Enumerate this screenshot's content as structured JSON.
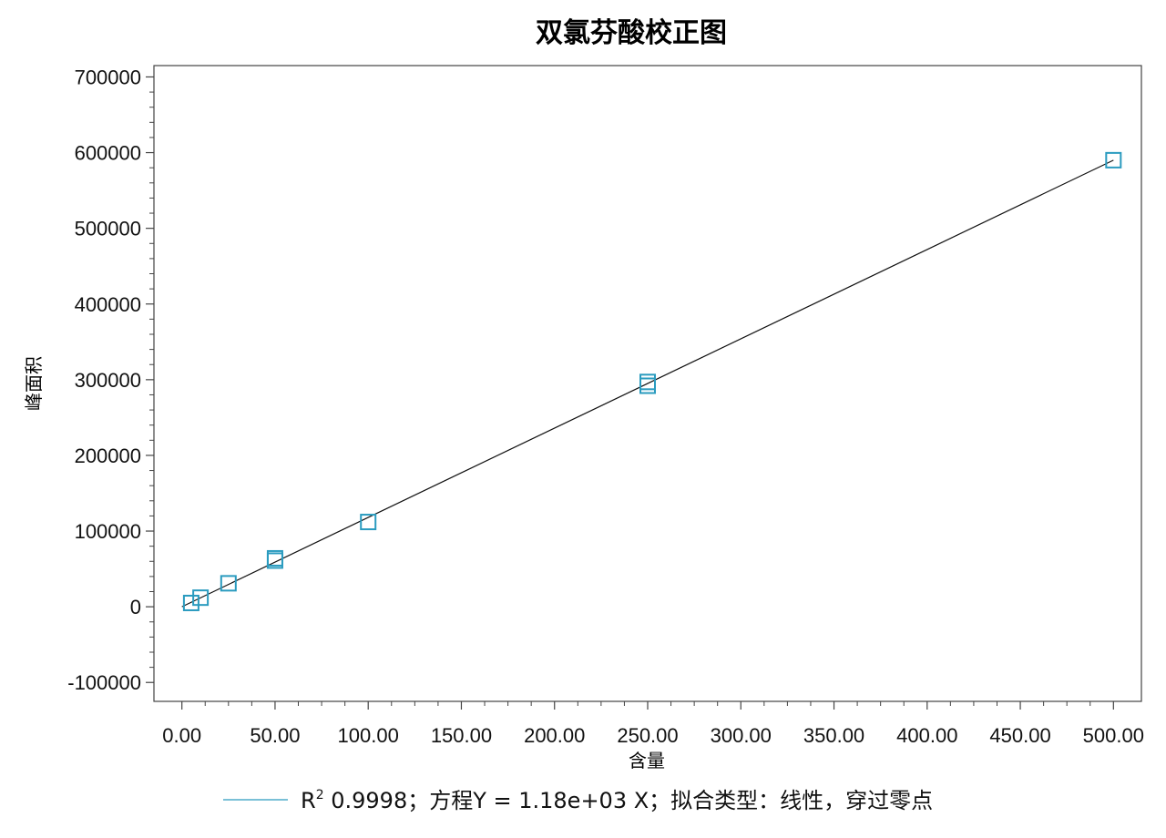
{
  "chart_data": {
    "type": "scatter",
    "title": "双氯芬酸校正图",
    "xlabel": "含量",
    "ylabel": "峰面积",
    "xlim": [
      -15,
      515
    ],
    "ylim": [
      -125000,
      715000
    ],
    "x_ticks": [
      "0.00",
      "50.00",
      "100.00",
      "150.00",
      "200.00",
      "250.00",
      "300.00",
      "350.00",
      "400.00",
      "450.00",
      "500.00"
    ],
    "y_ticks": [
      "700000",
      "600000",
      "500000",
      "400000",
      "300000",
      "200000",
      "100000",
      "0",
      "-100000"
    ],
    "series": [
      {
        "points": [
          {
            "x": 5,
            "y": 5000
          },
          {
            "x": 10,
            "y": 12000
          },
          {
            "x": 25,
            "y": 31000
          },
          {
            "x": 50,
            "y": 61000
          },
          {
            "x": 50,
            "y": 64000
          },
          {
            "x": 100,
            "y": 112000
          },
          {
            "x": 250,
            "y": 292000
          },
          {
            "x": 250,
            "y": 297000
          },
          {
            "x": 500,
            "y": 590000
          }
        ]
      }
    ],
    "fit_line": {
      "x": [
        0,
        500
      ],
      "y": [
        0,
        590000
      ]
    },
    "legend": {
      "r2_label": "R",
      "r2_superscript": "2",
      "text": " 0.9998；方程Y = 1.18e+03 X；拟合类型：线性，穿过零点"
    },
    "colors": {
      "marker": "#2a9bbf",
      "fit_line": "#111111",
      "legend_line": "#2a9bbf"
    },
    "grid": false,
    "legend_position": "bottom"
  }
}
